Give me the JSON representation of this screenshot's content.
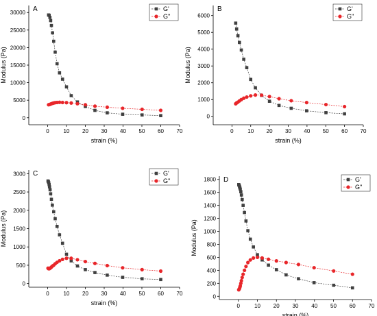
{
  "colors": {
    "Gprime": "#404040",
    "Gdouble": "#e8262a",
    "axis": "#000000"
  },
  "chart_data": [
    {
      "panel": "A",
      "type": "line",
      "xlabel": "strain (%)",
      "ylabel": "Modulus (Pa)",
      "xlim": [
        -10,
        70
      ],
      "ylim": [
        -2000,
        32000
      ],
      "xticks": [
        "0",
        "10",
        "20",
        "30",
        "40",
        "50",
        "60",
        "70"
      ],
      "yticks": [
        "0",
        "5000",
        "10000",
        "15000",
        "20000",
        "25000",
        "30000"
      ],
      "legend": [
        "G'",
        "G''"
      ],
      "legend_position": "top-right",
      "series": [
        {
          "name": "G'",
          "marker": "square",
          "x": [
            0.5,
            0.8,
            1.2,
            1.6,
            2.0,
            2.6,
            3.2,
            4,
            5,
            6.3,
            7.9,
            10,
            12.5,
            15.8,
            20,
            25.1,
            31.6,
            39.8,
            50.1,
            60
          ],
          "y": [
            29300,
            29200,
            28600,
            27700,
            26300,
            24200,
            21800,
            18700,
            15400,
            12800,
            11000,
            8800,
            6300,
            4500,
            3200,
            2100,
            1400,
            1000,
            800,
            600
          ]
        },
        {
          "name": "G''",
          "marker": "circle",
          "x": [
            0.5,
            0.8,
            1.2,
            1.6,
            2.0,
            2.6,
            3.2,
            4,
            5,
            6.3,
            7.9,
            10,
            12.5,
            15.8,
            20,
            25.1,
            31.6,
            39.8,
            50.1,
            60
          ],
          "y": [
            3700,
            3750,
            3800,
            3900,
            4000,
            4100,
            4200,
            4300,
            4350,
            4400,
            4350,
            4300,
            4200,
            4000,
            3700,
            3300,
            3000,
            2700,
            2400,
            2100
          ]
        }
      ]
    },
    {
      "panel": "B",
      "type": "line",
      "xlabel": "strain (%)",
      "ylabel": "Modulus (Pa)",
      "xlim": [
        -10,
        70
      ],
      "ylim": [
        -500,
        6600
      ],
      "xticks": [
        "0",
        "10",
        "20",
        "30",
        "40",
        "50",
        "60",
        "70"
      ],
      "yticks": [
        "0",
        "1000",
        "2000",
        "3000",
        "4000",
        "5000",
        "6000"
      ],
      "legend": [
        "G'",
        "G''"
      ],
      "legend_position": "top-right",
      "series": [
        {
          "name": "G'",
          "marker": "square",
          "x": [
            2,
            2.5,
            3.2,
            4,
            5,
            6.3,
            7.9,
            10,
            12.5,
            15.8,
            20,
            25.1,
            31.6,
            39.8,
            50.1,
            60
          ],
          "y": [
            5550,
            5200,
            4800,
            4400,
            3950,
            3400,
            2900,
            2200,
            1700,
            1250,
            900,
            650,
            480,
            330,
            220,
            150
          ]
        },
        {
          "name": "G''",
          "marker": "circle",
          "x": [
            2,
            2.5,
            3.2,
            4,
            5,
            6.3,
            7.9,
            10,
            12.5,
            15.8,
            20,
            25.1,
            31.6,
            39.8,
            50.1,
            60
          ],
          "y": [
            750,
            800,
            850,
            920,
            1000,
            1080,
            1150,
            1220,
            1270,
            1260,
            1180,
            1050,
            930,
            820,
            700,
            580
          ]
        }
      ]
    },
    {
      "panel": "C",
      "type": "line",
      "xlabel": "strain (%)",
      "ylabel": "Modulus (Pa)",
      "xlim": [
        -10,
        70
      ],
      "ylim": [
        -100,
        3100
      ],
      "xticks": [
        "0",
        "10",
        "20",
        "30",
        "40",
        "50",
        "60",
        "70"
      ],
      "yticks": [
        "0",
        "500",
        "1000",
        "1500",
        "2000",
        "2500",
        "3000"
      ],
      "legend": [
        "G'",
        "G''"
      ],
      "legend_position": "top-right",
      "series": [
        {
          "name": "G'",
          "marker": "square",
          "x": [
            0.2,
            0.4,
            0.6,
            0.8,
            1,
            1.3,
            1.6,
            2,
            2.5,
            3.2,
            4,
            5,
            6.3,
            7.9,
            10,
            12.5,
            15.8,
            20,
            25.1,
            31.6,
            39.8,
            50.1,
            60
          ],
          "y": [
            2800,
            2780,
            2750,
            2700,
            2640,
            2560,
            2450,
            2300,
            2140,
            1960,
            1770,
            1560,
            1330,
            1100,
            800,
            620,
            480,
            380,
            300,
            230,
            170,
            130,
            110
          ]
        },
        {
          "name": "G''",
          "marker": "circle",
          "x": [
            0.2,
            0.4,
            0.6,
            0.8,
            1,
            1.3,
            1.6,
            2,
            2.5,
            3.2,
            4,
            5,
            6.3,
            7.9,
            10,
            12.5,
            15.8,
            20,
            25.1,
            31.6,
            39.8,
            50.1,
            60
          ],
          "y": [
            420,
            410,
            405,
            405,
            410,
            420,
            430,
            450,
            475,
            500,
            540,
            580,
            620,
            660,
            690,
            690,
            650,
            600,
            550,
            490,
            430,
            380,
            340
          ]
        }
      ]
    },
    {
      "panel": "D",
      "type": "line",
      "xlabel": "strain (%)",
      "ylabel": "Modulus (Pa)",
      "xlim": [
        -10,
        70
      ],
      "ylim": [
        -50,
        1850
      ],
      "xticks": [
        "0",
        "10",
        "20",
        "30",
        "40",
        "50",
        "60",
        "70"
      ],
      "yticks": [
        "0",
        "200",
        "400",
        "600",
        "800",
        "1000",
        "1200",
        "1400",
        "1600",
        "1800"
      ],
      "legend": [
        "G'",
        "G''"
      ],
      "legend_position": "top-right",
      "series": [
        {
          "name": "G'",
          "marker": "square",
          "x": [
            0.2,
            0.4,
            0.6,
            0.8,
            1,
            1.3,
            1.6,
            2,
            2.5,
            3.2,
            4,
            5,
            6.3,
            7.9,
            10,
            12.5,
            15.8,
            20,
            25.1,
            31.6,
            39.8,
            50.1,
            60
          ],
          "y": [
            1720,
            1710,
            1690,
            1670,
            1650,
            1610,
            1560,
            1490,
            1400,
            1290,
            1160,
            1010,
            880,
            760,
            640,
            560,
            480,
            410,
            330,
            270,
            210,
            170,
            130
          ]
        },
        {
          "name": "G''",
          "marker": "circle",
          "x": [
            0.2,
            0.4,
            0.6,
            0.8,
            1,
            1.3,
            1.6,
            2,
            2.5,
            3.2,
            4,
            5,
            6.3,
            7.9,
            10,
            12.5,
            15.8,
            20,
            25.1,
            31.6,
            39.8,
            50.1,
            60
          ],
          "y": [
            100,
            110,
            120,
            140,
            160,
            200,
            240,
            290,
            340,
            400,
            460,
            520,
            560,
            590,
            600,
            590,
            570,
            545,
            520,
            490,
            440,
            390,
            340
          ]
        }
      ]
    }
  ]
}
